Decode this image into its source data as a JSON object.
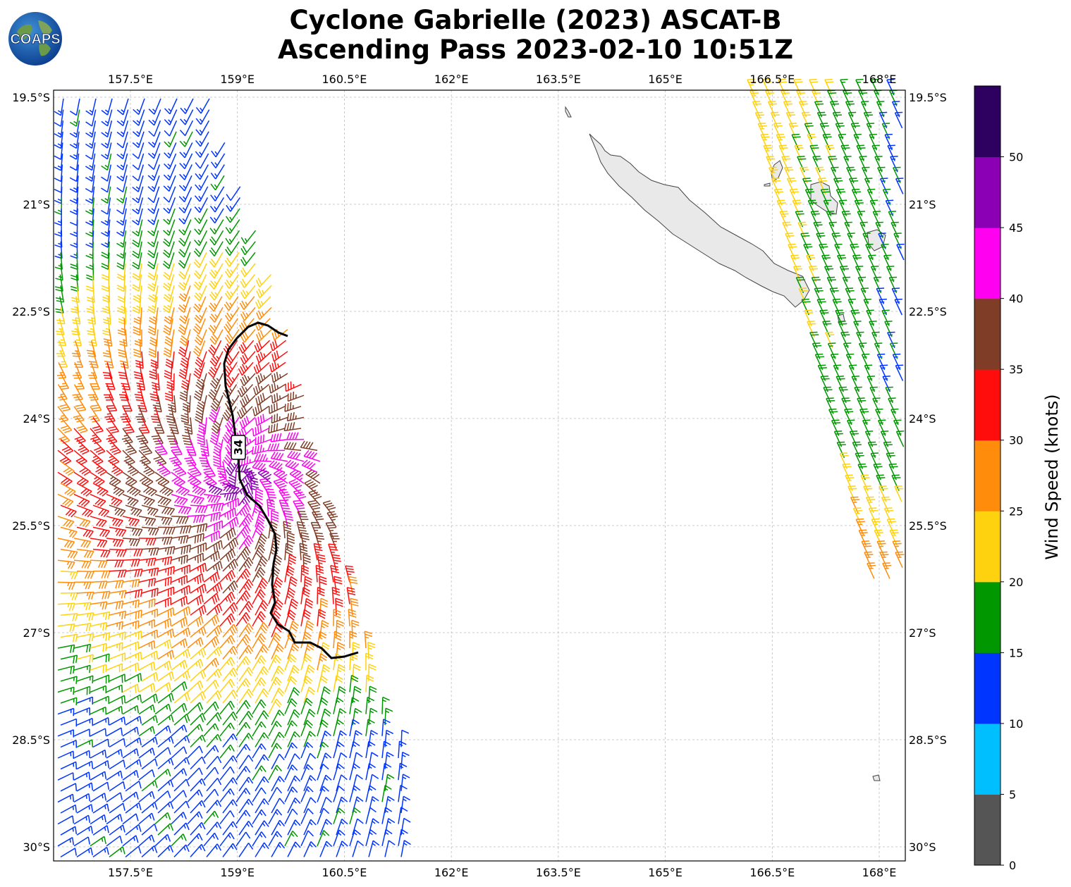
{
  "title_line1": "Cyclone Gabrielle (2023) ASCAT-B",
  "title_line2": "Ascending Pass 2023-02-10 10:51Z",
  "logo_text": "COAPS",
  "lon_ticks": [
    "157.5°E",
    "159°E",
    "160.5°E",
    "162°E",
    "163.5°E",
    "165°E",
    "166.5°E",
    "168°E"
  ],
  "lon_values": [
    157.5,
    159,
    160.5,
    162,
    163.5,
    165,
    166.5,
    168
  ],
  "lat_ticks": [
    "19.5°S",
    "21°S",
    "22.5°S",
    "24°S",
    "25.5°S",
    "27°S",
    "28.5°S",
    "30°S"
  ],
  "lat_values": [
    -19.5,
    -21,
    -22.5,
    -24,
    -25.5,
    -27,
    -28.5,
    -30
  ],
  "extent": {
    "lon_min": 156.5,
    "lon_max": 168.4,
    "lat_max": -19.4,
    "lat_min": -30.2
  },
  "contour_label": "34",
  "colorbar": {
    "label": "Wind Speed (knots)",
    "bins": [
      {
        "from": 0,
        "to": 5,
        "color": "#555555"
      },
      {
        "from": 5,
        "to": 10,
        "color": "#00bfff"
      },
      {
        "from": 10,
        "to": 15,
        "color": "#0035ff"
      },
      {
        "from": 15,
        "to": 20,
        "color": "#009700"
      },
      {
        "from": 20,
        "to": 25,
        "color": "#ffd20f"
      },
      {
        "from": 25,
        "to": 30,
        "color": "#ff8c0a"
      },
      {
        "from": 30,
        "to": 35,
        "color": "#ff0d0d"
      },
      {
        "from": 35,
        "to": 40,
        "color": "#7f3d28"
      },
      {
        "from": 40,
        "to": 45,
        "color": "#ff00f0"
      },
      {
        "from": 45,
        "to": 50,
        "color": "#8b00b5"
      },
      {
        "from": 50,
        "to": 55,
        "color": "#2e0060"
      }
    ],
    "ticks": [
      "0",
      "5",
      "10",
      "15",
      "20",
      "25",
      "30",
      "35",
      "40",
      "45",
      "50"
    ]
  }
}
